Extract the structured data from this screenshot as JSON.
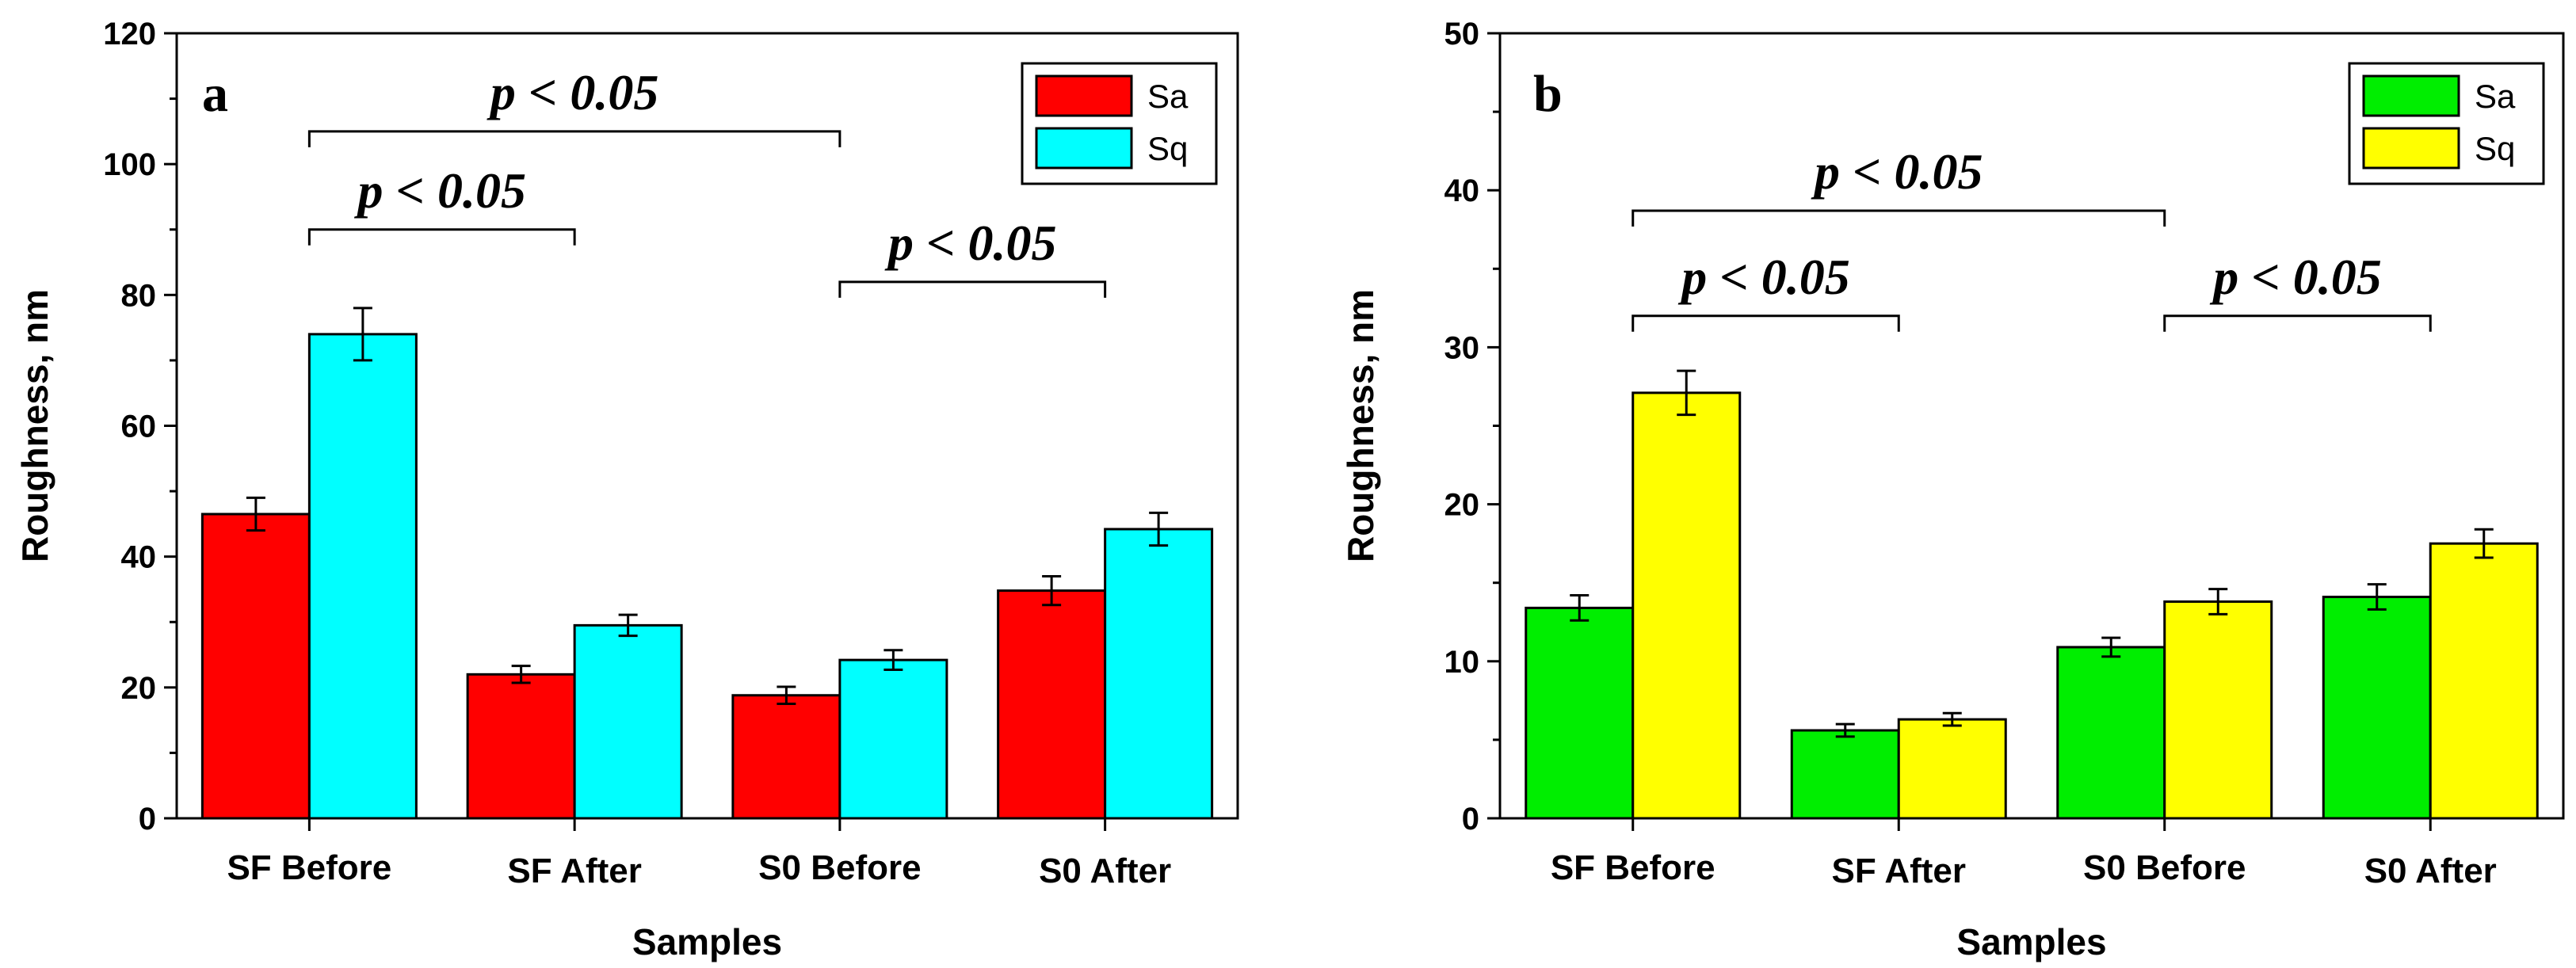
{
  "chart_data": [
    {
      "panel_label": "a",
      "type": "bar",
      "categories": [
        "SF Before",
        "SF After",
        "S0 Before",
        "S0 After"
      ],
      "series": [
        {
          "name": "Sa",
          "color": "#ff0000",
          "values": [
            46.5,
            22.0,
            18.8,
            34.8
          ],
          "errors": [
            2.5,
            1.3,
            1.3,
            2.2
          ]
        },
        {
          "name": "Sq",
          "color": "#00ffff",
          "values": [
            74.0,
            29.5,
            24.2,
            44.2
          ],
          "errors": [
            4.0,
            1.6,
            1.5,
            2.5
          ]
        }
      ],
      "xlabel": "Samples",
      "ylabel": "Roughness, nm",
      "ylim": [
        0,
        120
      ],
      "yticks": [
        "0",
        "20",
        "40",
        "60",
        "80",
        "100",
        "120"
      ],
      "legend_position": "top-right",
      "significance": [
        {
          "text": "p < 0.05",
          "from_category": 0,
          "to_category": 1,
          "level": 90
        },
        {
          "text": "p < 0.05",
          "from_category": 0,
          "to_category": 2,
          "level": 105
        },
        {
          "text": "p < 0.05",
          "from_category": 2,
          "to_category": 3,
          "level": 82
        }
      ]
    },
    {
      "panel_label": "b",
      "type": "bar",
      "categories": [
        "SF Before",
        "SF After",
        "S0 Before",
        "S0 After"
      ],
      "series": [
        {
          "name": "Sa",
          "color": "#00ee00",
          "values": [
            13.4,
            5.6,
            10.9,
            14.1
          ],
          "errors": [
            0.8,
            0.4,
            0.6,
            0.8
          ]
        },
        {
          "name": "Sq",
          "color": "#ffff00",
          "values": [
            27.1,
            6.3,
            13.8,
            17.5
          ],
          "errors": [
            1.4,
            0.4,
            0.8,
            0.9
          ]
        }
      ],
      "xlabel": "Samples",
      "ylabel": "Roughness, nm",
      "ylim": [
        0,
        50
      ],
      "yticks": [
        "0",
        "10",
        "20",
        "30",
        "40",
        "50"
      ],
      "legend_position": "top-right",
      "significance": [
        {
          "text": "p < 0.05",
          "from_category": 0,
          "to_category": 1,
          "level": 32
        },
        {
          "text": "p < 0.05",
          "from_category": 0,
          "to_category": 2,
          "level": 38.7
        },
        {
          "text": "p < 0.05",
          "from_category": 2,
          "to_category": 3,
          "level": 32
        }
      ]
    }
  ]
}
